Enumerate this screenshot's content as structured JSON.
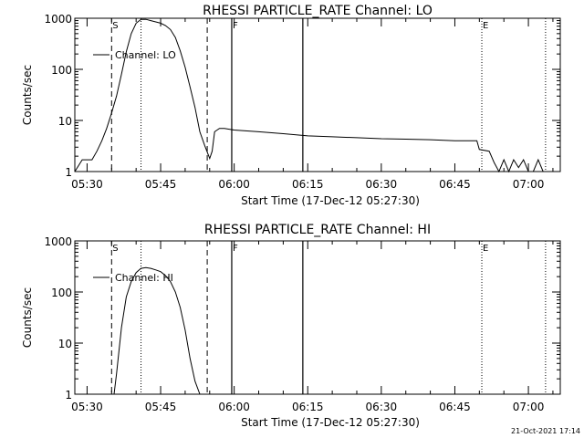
{
  "footer": {
    "timestamp": "21-Oct-2021 17:14"
  },
  "chart_data": [
    {
      "type": "line",
      "title": "RHESSI PARTICLE_RATE Channel: LO",
      "xlabel": "Start Time (17-Dec-12 05:27:30)",
      "ylabel": "Counts/sec",
      "yscale": "log",
      "ylim": [
        1,
        1000
      ],
      "xlim": [
        "05:27:30",
        "07:06:30"
      ],
      "xticks": [
        "05:30",
        "05:45",
        "06:00",
        "06:15",
        "06:30",
        "06:45",
        "07:00"
      ],
      "yticks": [
        "1",
        "10",
        "100",
        "1000"
      ],
      "legend": "upper-left",
      "markers": {
        "S": "05:35:00",
        "F": "05:59:30",
        "E": "06:50:30"
      },
      "vertical_lines": {
        "dashed": [
          "05:35:00",
          "05:54:30"
        ],
        "dotted": [
          "05:41:00",
          "06:50:30",
          "07:03:30"
        ],
        "solid": [
          "05:59:30",
          "06:14:00"
        ]
      },
      "series": [
        {
          "name": "Channel: LO",
          "x": [
            "05:27:30",
            "05:29:00",
            "05:31:00",
            "05:32:00",
            "05:33:00",
            "05:34:00",
            "05:35:00",
            "05:36:00",
            "05:37:00",
            "05:38:00",
            "05:39:00",
            "05:40:00",
            "05:41:00",
            "05:42:00",
            "05:43:00",
            "05:44:00",
            "05:45:00",
            "05:46:00",
            "05:47:00",
            "05:48:00",
            "05:49:00",
            "05:50:00",
            "05:51:00",
            "05:52:00",
            "05:53:00",
            "05:54:00",
            "05:55:00",
            "05:55:30",
            "05:56:00",
            "05:57:00",
            "05:58:00",
            "06:00:00",
            "06:05:00",
            "06:10:00",
            "06:15:00",
            "06:20:00",
            "06:25:00",
            "06:30:00",
            "06:35:00",
            "06:40:00",
            "06:45:00",
            "06:49:30",
            "06:50:00",
            "06:52:00",
            "06:53:00",
            "06:54:00",
            "06:55:00",
            "06:56:00",
            "06:57:00",
            "06:58:00",
            "06:59:00",
            "07:00:00",
            "07:01:00",
            "07:02:00",
            "07:03:00"
          ],
          "y": [
            1.0,
            1.7,
            1.7,
            2.5,
            4,
            7,
            14,
            30,
            80,
            220,
            500,
            800,
            950,
            950,
            900,
            850,
            800,
            720,
            600,
            420,
            230,
            110,
            45,
            18,
            6,
            3.2,
            1.8,
            2.5,
            6,
            7,
            7,
            6.5,
            6,
            5.5,
            5,
            4.8,
            4.6,
            4.4,
            4.3,
            4.2,
            4.0,
            4.0,
            2.7,
            2.5,
            1.5,
            1.0,
            1.7,
            1.0,
            1.7,
            1.2,
            1.7,
            1.0,
            1.0,
            1.7,
            1.0
          ]
        }
      ]
    },
    {
      "type": "line",
      "title": "RHESSI PARTICLE_RATE Channel: HI",
      "xlabel": "Start Time (17-Dec-12 05:27:30)",
      "ylabel": "Counts/sec",
      "yscale": "log",
      "ylim": [
        1,
        1000
      ],
      "xlim": [
        "05:27:30",
        "07:06:30"
      ],
      "xticks": [
        "05:30",
        "05:45",
        "06:00",
        "06:15",
        "06:30",
        "06:45",
        "07:00"
      ],
      "yticks": [
        "1",
        "10",
        "100",
        "1000"
      ],
      "legend": "upper-left",
      "markers": {
        "S": "05:35:00",
        "F": "05:59:30",
        "E": "06:50:30"
      },
      "vertical_lines": {
        "dashed": [
          "05:35:00",
          "05:54:30"
        ],
        "dotted": [
          "05:41:00",
          "06:50:30",
          "07:03:30"
        ],
        "solid": [
          "05:59:30",
          "06:14:00"
        ]
      },
      "series": [
        {
          "name": "Channel: HI",
          "x": [
            "05:35:30",
            "05:36:00",
            "05:37:00",
            "05:38:00",
            "05:39:00",
            "05:40:00",
            "05:41:00",
            "05:42:00",
            "05:43:00",
            "05:44:00",
            "05:45:00",
            "05:46:00",
            "05:47:00",
            "05:48:00",
            "05:49:00",
            "05:50:00",
            "05:51:00",
            "05:52:00",
            "05:53:00"
          ],
          "y": [
            1.0,
            2.5,
            20,
            80,
            160,
            240,
            290,
            300,
            290,
            270,
            250,
            210,
            160,
            100,
            50,
            18,
            5,
            1.8,
            1.0
          ]
        }
      ]
    }
  ]
}
